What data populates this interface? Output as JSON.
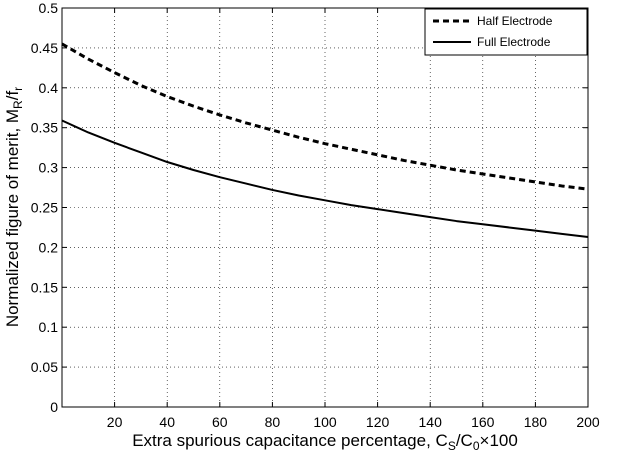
{
  "chart_data": {
    "type": "line",
    "title": "",
    "xlabel": {
      "prefix": "Extra spurious capacitance percentage, C",
      "sub1": "S",
      "middle": "/C",
      "sub2": "0",
      "suffix": "×100"
    },
    "ylabel": {
      "prefix": "Normalized figure of merit, M",
      "sub1": "R",
      "middle": "/f",
      "sub2": "r"
    },
    "xlim": [
      0,
      200
    ],
    "ylim": [
      0,
      0.5
    ],
    "xticks": [
      20,
      40,
      60,
      80,
      100,
      120,
      140,
      160,
      180,
      200
    ],
    "yticks": [
      0,
      0.05,
      0.1,
      0.15,
      0.2,
      0.25,
      0.3,
      0.35,
      0.4,
      0.45,
      0.5
    ],
    "grid": true,
    "legend": "top-right",
    "x": [
      0,
      10,
      20,
      30,
      40,
      50,
      60,
      70,
      80,
      90,
      100,
      110,
      120,
      130,
      140,
      150,
      160,
      170,
      180,
      190,
      200
    ],
    "series": [
      {
        "name": "Half Electrode",
        "style": "dashed",
        "color": "#000000",
        "values": [
          0.455,
          0.436,
          0.419,
          0.403,
          0.389,
          0.377,
          0.366,
          0.356,
          0.347,
          0.338,
          0.33,
          0.323,
          0.316,
          0.309,
          0.303,
          0.297,
          0.292,
          0.287,
          0.282,
          0.277,
          0.273
        ]
      },
      {
        "name": "Full Electrode",
        "style": "solid",
        "color": "#000000",
        "values": [
          0.359,
          0.344,
          0.331,
          0.319,
          0.307,
          0.297,
          0.288,
          0.28,
          0.272,
          0.265,
          0.259,
          0.253,
          0.248,
          0.243,
          0.238,
          0.233,
          0.229,
          0.225,
          0.221,
          0.217,
          0.213
        ]
      }
    ]
  }
}
